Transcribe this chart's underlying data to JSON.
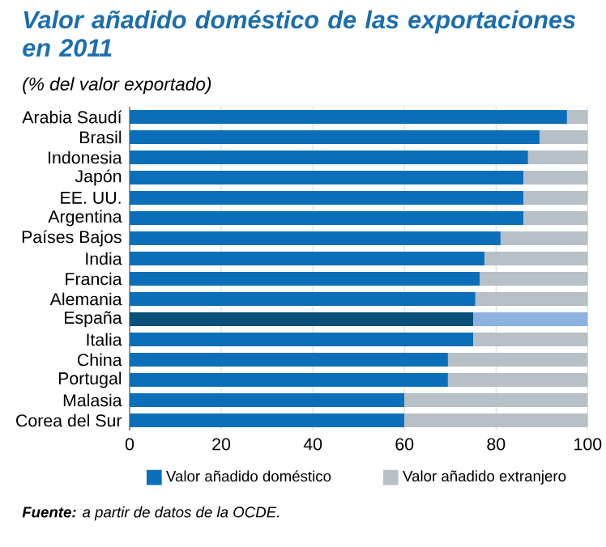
{
  "chart_data": {
    "type": "bar",
    "orientation": "horizontal",
    "stacked": true,
    "title": "Valor añadido doméstico de las exportaciones en 2011",
    "subtitle": "(% del valor exportado)",
    "categories": [
      "Arabia Saudí",
      "Brasil",
      "Indonesia",
      "Japón",
      "EE. UU.",
      "Argentina",
      "Países Bajos",
      "India",
      "Francia",
      "Alemania",
      "España",
      "Italia",
      "China",
      "Portugal",
      "Malasia",
      "Corea del Sur"
    ],
    "series": [
      {
        "name": "Valor añadido doméstico",
        "color": "#0a6fb8",
        "colors": [
          "#0a6fb8",
          "#0a6fb8",
          "#0a6fb8",
          "#0a6fb8",
          "#0a6fb8",
          "#0a6fb8",
          "#0a6fb8",
          "#0a6fb8",
          "#0a6fb8",
          "#0a6fb8",
          "#0b4f7b",
          "#0a6fb8",
          "#0a6fb8",
          "#0a6fb8",
          "#0a6fb8",
          "#0a6fb8"
        ],
        "values": [
          95.5,
          89.5,
          87,
          86,
          86,
          86,
          81,
          77.5,
          76.5,
          75.5,
          75,
          75,
          69.5,
          69.5,
          60,
          60
        ]
      },
      {
        "name": "Valor añadido extranjero",
        "color": "#b6c0c6",
        "colors": [
          "#b6c0c6",
          "#b6c0c6",
          "#b6c0c6",
          "#b6c0c6",
          "#b6c0c6",
          "#b6c0c6",
          "#b6c0c6",
          "#b6c0c6",
          "#b6c0c6",
          "#b6c0c6",
          "#8db2df",
          "#b6c0c6",
          "#b6c0c6",
          "#b6c0c6",
          "#b6c0c6",
          "#b6c0c6"
        ],
        "values": [
          4.5,
          10.5,
          13,
          14,
          14,
          14,
          19,
          22.5,
          23.5,
          24.5,
          25,
          25,
          30.5,
          30.5,
          40,
          40
        ]
      }
    ],
    "xlim": [
      0,
      100
    ],
    "xticks": [
      0,
      20,
      40,
      60,
      80,
      100
    ],
    "grid": "x",
    "legend": "bottom",
    "annotations": [
      "**Fuente:** a partir de datos de la OCDE."
    ]
  }
}
